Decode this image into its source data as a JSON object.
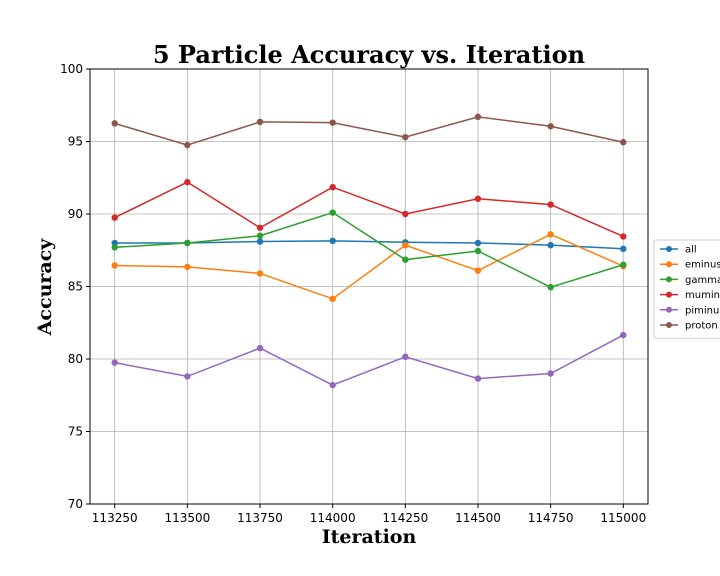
{
  "chart_data": {
    "type": "line",
    "title": "5 Particle Accuracy vs. Iteration",
    "xlabel": "Iteration",
    "ylabel": "Accuracy",
    "x": [
      113250,
      113500,
      113750,
      114000,
      114250,
      114500,
      114750,
      115000
    ],
    "xticks": [
      113250,
      113500,
      113750,
      114000,
      114250,
      114500,
      114750,
      115000
    ],
    "xlim": [
      113165,
      115085
    ],
    "ylim": [
      70,
      100
    ],
    "yticks": [
      70,
      75,
      80,
      85,
      90,
      95,
      100
    ],
    "grid": true,
    "legend_position": "right",
    "series": [
      {
        "name": "all",
        "color": "#1f77b4",
        "values": [
          88.0,
          88.0,
          88.1,
          88.15,
          88.05,
          88.0,
          87.85,
          87.6
        ]
      },
      {
        "name": "eminus",
        "color": "#ff7f0e",
        "values": [
          86.45,
          86.35,
          85.9,
          84.15,
          87.85,
          86.1,
          88.6,
          86.4
        ]
      },
      {
        "name": "gamma",
        "color": "#2ca02c",
        "values": [
          87.7,
          88.0,
          88.5,
          90.1,
          86.85,
          87.45,
          84.95,
          86.5
        ]
      },
      {
        "name": "muminus",
        "color": "#d62728",
        "values": [
          89.75,
          92.2,
          89.05,
          91.85,
          90.0,
          91.05,
          90.65,
          88.45
        ]
      },
      {
        "name": "piminus",
        "color": "#9467bd",
        "values": [
          79.75,
          78.8,
          80.75,
          78.2,
          80.15,
          78.65,
          79.0,
          81.65
        ]
      },
      {
        "name": "proton",
        "color": "#8c564b",
        "values": [
          96.25,
          94.75,
          96.35,
          96.3,
          95.3,
          96.7,
          96.05,
          94.95
        ]
      }
    ]
  }
}
